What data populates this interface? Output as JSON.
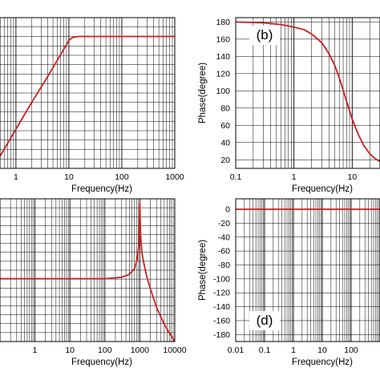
{
  "chart_data": [
    {
      "type": "line",
      "panel_tag": "",
      "xlabel": "Frequency(Hz)",
      "ylabel": "",
      "x_scale": "log",
      "xlim": [
        0.5,
        1000
      ],
      "xticks": [
        "1",
        "10",
        "100",
        "1000"
      ],
      "ylim": [
        0,
        1
      ],
      "yticks": [],
      "grid": true,
      "series": [
        {
          "color": "#cc1f1f",
          "x": [
            0.5,
            1,
            2,
            4,
            8,
            10,
            12,
            15,
            20,
            50,
            100,
            300,
            1000
          ],
          "y": [
            0.08,
            0.26,
            0.44,
            0.61,
            0.79,
            0.85,
            0.87,
            0.875,
            0.875,
            0.875,
            0.875,
            0.875,
            0.875
          ]
        }
      ]
    },
    {
      "type": "line",
      "panel_tag": "(b)",
      "xlabel": "Frequency(Hz)",
      "ylabel": "Phase(degree)",
      "x_scale": "log",
      "xlim": [
        0.1,
        30
      ],
      "xticks": [
        "0.1",
        "1",
        "10"
      ],
      "ylim": [
        10,
        185
      ],
      "yticks": [
        "20",
        "40",
        "60",
        "80",
        "100",
        "120",
        "140",
        "160",
        "180"
      ],
      "grid": true,
      "series": [
        {
          "color": "#cc1f1f",
          "x": [
            0.1,
            0.3,
            0.6,
            1,
            1.5,
            2,
            3,
            4,
            5,
            6,
            8,
            10,
            13,
            16,
            20,
            25,
            30
          ],
          "y": [
            180,
            179,
            177,
            174,
            171,
            166,
            156,
            143,
            130,
            115,
            88,
            67,
            48,
            36,
            27,
            21,
            18
          ]
        }
      ]
    },
    {
      "type": "line",
      "panel_tag": "",
      "xlabel": "Frequency(Hz)",
      "ylabel": "",
      "x_scale": "log",
      "xlim": [
        0.1,
        10000
      ],
      "xticks": [
        "1",
        "10",
        "100",
        "1000",
        "10000"
      ],
      "ylim": [
        0,
        1
      ],
      "yticks": [],
      "grid": true,
      "series": [
        {
          "color": "#cc1f1f",
          "x": [
            0.1,
            1,
            10,
            100,
            300,
            500,
            700,
            850,
            950,
            1000,
            1050,
            1150,
            1300,
            1600,
            2000,
            3000,
            5000,
            10000
          ],
          "y": [
            0.44,
            0.44,
            0.44,
            0.44,
            0.45,
            0.47,
            0.51,
            0.58,
            0.7,
            0.97,
            0.75,
            0.62,
            0.55,
            0.45,
            0.37,
            0.24,
            0.12,
            0.0
          ]
        }
      ]
    },
    {
      "type": "line",
      "panel_tag": "(d)",
      "xlabel": "Frequency(Hz)",
      "ylabel": "Phase(degree)",
      "x_scale": "log",
      "xlim": [
        0.01,
        1000
      ],
      "xticks": [
        "0.01",
        "0.1",
        "1",
        "10",
        "100"
      ],
      "ylim": [
        -190,
        15
      ],
      "yticks": [
        "0",
        "-20",
        "-40",
        "-60",
        "-80",
        "-100",
        "-120",
        "-140",
        "-160",
        "-180"
      ],
      "grid": true,
      "series": [
        {
          "color": "#cc1f1f",
          "x": [
            0.01,
            1000
          ],
          "y": [
            0,
            0
          ]
        }
      ]
    }
  ]
}
